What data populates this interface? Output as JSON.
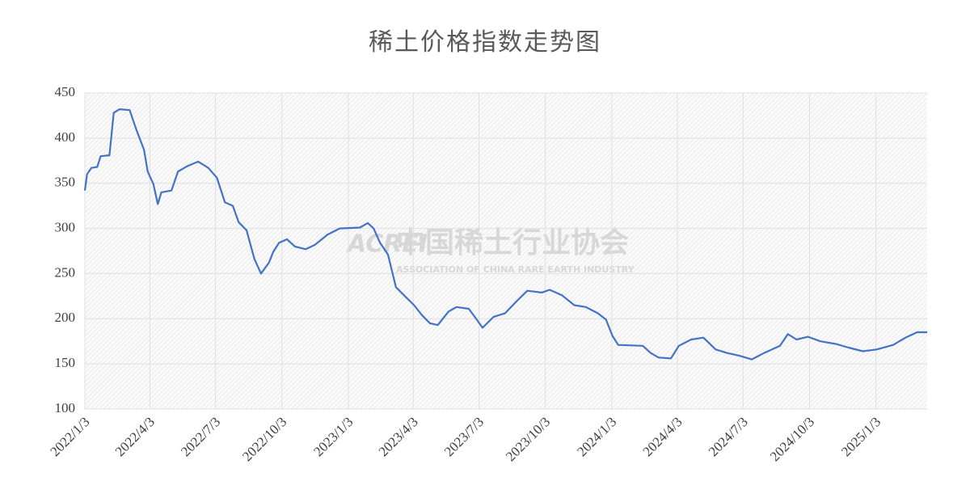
{
  "chart_data": {
    "type": "line",
    "title": "稀土价格指数走势图",
    "watermark": {
      "logo": "ACREI",
      "name": "中国稀土行业协会",
      "subtitle": "ASSOCIATION OF CHINA RARE EARTH INDUSTRY"
    },
    "x": [
      "2022/1/3",
      "2022/1/6",
      "2022/1/12",
      "2022/1/20",
      "2022/1/25",
      "2022/2/6",
      "2022/2/12",
      "2022/2/20",
      "2022/3/6",
      "2022/3/15",
      "2022/3/26",
      "2022/3/31",
      "2022/4/8",
      "2022/4/14",
      "2022/4/19",
      "2022/5/3",
      "2022/5/12",
      "2022/5/25",
      "2022/6/9",
      "2022/6/23",
      "2022/7/5",
      "2022/7/16",
      "2022/7/27",
      "2022/8/4",
      "2022/8/15",
      "2022/8/26",
      "2022/9/4",
      "2022/9/15",
      "2022/9/21",
      "2022/9/29",
      "2022/10/10",
      "2022/10/21",
      "2022/11/5",
      "2022/11/18",
      "2022/12/5",
      "2022/12/22",
      "2023/1/19",
      "2023/1/30",
      "2023/2/7",
      "2023/2/16",
      "2023/2/27",
      "2023/3/10",
      "2023/3/21",
      "2023/4/4",
      "2023/4/15",
      "2023/4/26",
      "2023/5/7",
      "2023/5/22",
      "2023/6/2",
      "2023/6/19",
      "2023/6/30",
      "2023/7/8",
      "2023/7/23",
      "2023/8/8",
      "2023/8/25",
      "2023/9/8",
      "2023/9/28",
      "2023/10/9",
      "2023/10/26",
      "2023/11/12",
      "2023/11/28",
      "2023/12/15",
      "2023/12/26",
      "2024/1/4",
      "2024/1/12",
      "2024/2/15",
      "2024/2/26",
      "2024/3/8",
      "2024/3/25",
      "2024/4/5",
      "2024/4/22",
      "2024/5/9",
      "2024/5/26",
      "2024/6/11",
      "2024/6/28",
      "2024/7/15",
      "2024/8/1",
      "2024/8/23",
      "2024/9/3",
      "2024/9/15",
      "2024/10/1",
      "2024/10/18",
      "2024/11/9",
      "2024/11/26",
      "2024/12/16",
      "2025/1/4",
      "2025/1/27",
      "2025/2/13",
      "2025/3/1",
      "2025/3/15"
    ],
    "series": [
      {
        "color": "#4472c4",
        "values": [
          342,
          360,
          367,
          368,
          380,
          381,
          428,
          432,
          431,
          410,
          387,
          363,
          349,
          327,
          340,
          342,
          363,
          369,
          374,
          367,
          356,
          329,
          325,
          307,
          298,
          266,
          250,
          262,
          274,
          284,
          288,
          280,
          277,
          282,
          293,
          300,
          301,
          306,
          300,
          284,
          271,
          235,
          226,
          215,
          204,
          195,
          193,
          208,
          213,
          211,
          199,
          190,
          202,
          206,
          220,
          231,
          229,
          232,
          226,
          215,
          213,
          206,
          199,
          181,
          171,
          170,
          162,
          157,
          156,
          170,
          177,
          179,
          166,
          162,
          159,
          155,
          162,
          170,
          183,
          177,
          180,
          175,
          172,
          168,
          164,
          166,
          171,
          179,
          185,
          185
        ]
      }
    ],
    "xlim": [
      "2022/1/3",
      "2025/3/15"
    ],
    "xticks": [
      "2022/1/3",
      "2022/4/3",
      "2022/7/3",
      "2022/10/3",
      "2023/1/3",
      "2023/4/3",
      "2023/7/3",
      "2023/10/3",
      "2024/1/3",
      "2024/4/3",
      "2024/7/3",
      "2024/10/3",
      "2025/1/3"
    ],
    "ylim": [
      100,
      450
    ],
    "yticks": [
      100,
      150,
      200,
      250,
      300,
      350,
      400,
      450
    ],
    "grid": true
  }
}
